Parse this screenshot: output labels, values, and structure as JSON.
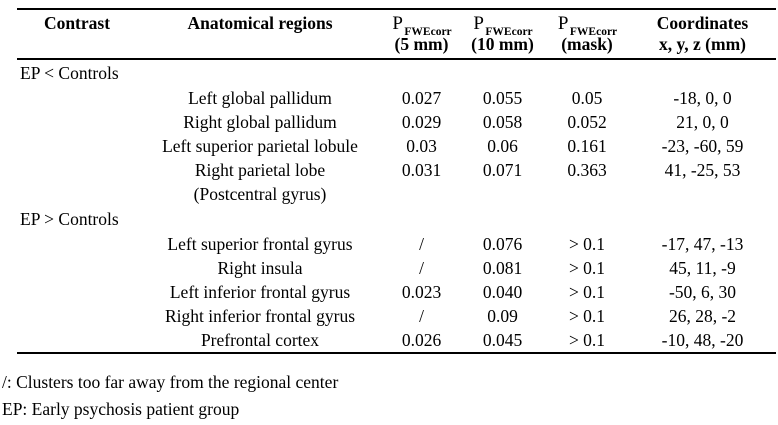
{
  "header": {
    "contrast": "Contrast",
    "regions": "Anatomical regions",
    "p_symbol": "P",
    "p_subscript": "FWEcorr",
    "p5_unit": "(5 mm)",
    "p10_unit": "(10 mm)",
    "pmask_unit": "(mask)",
    "coordinates": "Coordinates",
    "coordinates_unit": "x, y, z (mm)"
  },
  "sections": [
    {
      "label": "EP < Controls",
      "rows": [
        {
          "region": "Left global pallidum",
          "p5": "0.027",
          "p10": "0.055",
          "pmask": "0.05",
          "coords": "-18, 0, 0"
        },
        {
          "region": "Right global pallidum",
          "p5": "0.029",
          "p10": "0.058",
          "pmask": "0.052",
          "coords": "21, 0, 0"
        },
        {
          "region": "Left superior parietal lobule",
          "p5": "0.03",
          "p10": "0.06",
          "pmask": "0.161",
          "coords": "-23, -60, 59"
        },
        {
          "region": "Right parietal lobe",
          "region2": "(Postcentral gyrus)",
          "p5": "0.031",
          "p10": "0.071",
          "pmask": "0.363",
          "coords": "41, -25, 53"
        }
      ]
    },
    {
      "label": "EP > Controls",
      "rows": [
        {
          "region": "Left superior frontal gyrus",
          "p5": "/",
          "p10": "0.076",
          "pmask": "> 0.1",
          "coords": "-17, 47, -13"
        },
        {
          "region": "Right insula",
          "p5": "/",
          "p10": "0.081",
          "pmask": "> 0.1",
          "coords": "45, 11, -9"
        },
        {
          "region": "Left inferior frontal gyrus",
          "p5": "0.023",
          "p10": "0.040",
          "pmask": "> 0.1",
          "coords": "-50, 6, 30"
        },
        {
          "region": "Right inferior frontal gyrus",
          "p5": "/",
          "p10": "0.09",
          "pmask": "> 0.1",
          "coords": "26, 28, -2"
        },
        {
          "region": "Prefrontal cortex",
          "p5": "0.026",
          "p10": "0.045",
          "pmask": "> 0.1",
          "coords": "-10, 48, -20"
        }
      ]
    }
  ],
  "footnotes": [
    "/: Clusters too far away from the regional center",
    "EP: Early psychosis patient group"
  ],
  "colors": {
    "text": "#000000",
    "background": "#ffffff",
    "rule": "#000000"
  }
}
